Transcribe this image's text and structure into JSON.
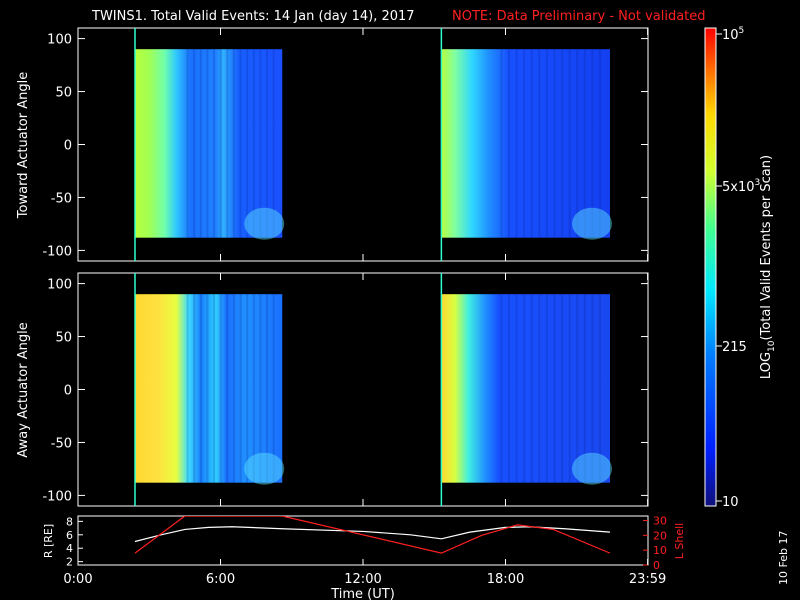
{
  "header": {
    "title": "TWINS1. Total Valid Events: 14 Jan (day  14), 2017",
    "note": "NOTE: Data Preliminary - Not validated"
  },
  "side_stamp": "10 Feb 17",
  "colors": {
    "background": "#000000",
    "axis": "#ffffff",
    "note": "#ff2020",
    "r_line": "#ffffff",
    "lshell_line": "#ff2020"
  },
  "chart_data": [
    {
      "type": "heatmap",
      "ylabel": "Toward Actuator Angle",
      "ylim": [
        -110,
        110
      ],
      "yticks": [
        "100",
        "50",
        "0",
        "-50",
        "-100"
      ],
      "xlim": [
        0,
        24
      ],
      "data_blocks": [
        {
          "start_h": 2.4,
          "end_h": 8.6,
          "angle_range": [
            -88,
            90
          ]
        },
        {
          "start_h": 15.3,
          "end_h": 22.4,
          "angle_range": [
            -88,
            90
          ]
        }
      ]
    },
    {
      "type": "heatmap",
      "ylabel": "Away Actuator Angle",
      "ylim": [
        -110,
        110
      ],
      "yticks": [
        "100",
        "50",
        "0",
        "-50",
        "-100"
      ],
      "xlim": [
        0,
        24
      ],
      "data_blocks": [
        {
          "start_h": 2.4,
          "end_h": 8.6,
          "angle_range": [
            -88,
            90
          ]
        },
        {
          "start_h": 15.3,
          "end_h": 22.4,
          "angle_range": [
            -88,
            90
          ]
        }
      ]
    },
    {
      "type": "line",
      "xlabel": "Time (UT)",
      "xticks": [
        "0:00",
        "6:00",
        "12:00",
        "18:00",
        "23:59"
      ],
      "xtick_hours": [
        0,
        6,
        12,
        18,
        23.983
      ],
      "ylabel_left": "R [RE]",
      "ylabel_right": "L Shell",
      "yticks_left": [
        "8",
        "6",
        "4",
        "2"
      ],
      "yticks_right": [
        "30",
        "20",
        "10",
        "0"
      ],
      "ylim_left": [
        1.5,
        8.8
      ],
      "ylim_right": [
        0,
        33
      ],
      "series": [
        {
          "name": "R [RE]",
          "x": [
            2.4,
            3.5,
            4.5,
            5.5,
            6.5,
            8.6,
            12.0,
            14.0,
            15.3,
            16.5,
            18.0,
            19.0,
            20.5,
            22.4
          ],
          "values": [
            5.0,
            6.0,
            6.8,
            7.1,
            7.2,
            6.9,
            6.5,
            6.0,
            5.4,
            6.4,
            7.1,
            7.2,
            6.9,
            6.4
          ]
        },
        {
          "name": "L Shell",
          "x": [
            2.4,
            4.5,
            8.6,
            15.3,
            17.0,
            18.5,
            20.0,
            22.4
          ],
          "values": [
            8,
            33,
            33,
            8,
            20,
            27,
            24,
            8
          ]
        }
      ],
      "colorbar": {
        "tick_labels": [
          "10",
          "215",
          "5x10",
          "10"
        ],
        "tick_exponents": [
          "",
          "",
          "3",
          "5"
        ],
        "label": "LOG",
        "label_sub": "10",
        "label_rest": "(Total Valid Events per Scan)"
      }
    }
  ]
}
